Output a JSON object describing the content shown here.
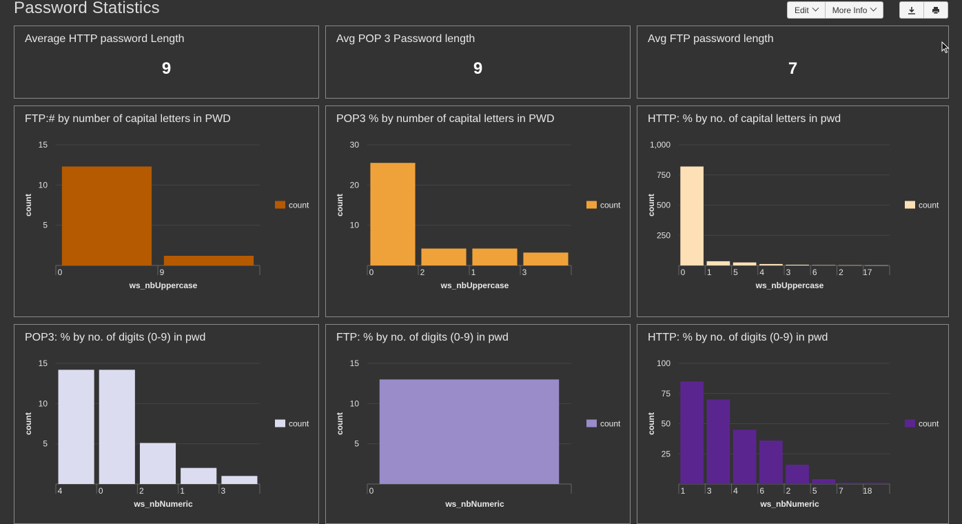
{
  "page": {
    "title": "Password Statistics"
  },
  "toolbar": {
    "edit_label": "Edit",
    "more_info_label": "More Info",
    "download_icon": "download-icon",
    "print_icon": "print-icon"
  },
  "single_values": [
    {
      "title": "Average HTTP password Length",
      "value": "9"
    },
    {
      "title": "Avg POP 3 Password length",
      "value": "9"
    },
    {
      "title": "Avg FTP password length",
      "value": "7"
    }
  ],
  "chart_data": [
    {
      "type": "bar",
      "title": "FTP:# by number of capital letters in PWD",
      "xlabel": "ws_nbUppercase",
      "ylabel": "count",
      "categories": [
        "0",
        "9"
      ],
      "series": [
        {
          "name": "count",
          "values": [
            12.3,
            1.2
          ]
        }
      ],
      "ylim": [
        0,
        15
      ],
      "yticks": [
        "5",
        "10",
        "15"
      ],
      "ytick_values": [
        5,
        10,
        15
      ],
      "color": "#b55a00",
      "legend": "right"
    },
    {
      "type": "bar",
      "title": "POP3 % by number of capital letters in PWD",
      "xlabel": "ws_nbUppercase",
      "ylabel": "count",
      "categories": [
        "0",
        "2",
        "1",
        "3"
      ],
      "series": [
        {
          "name": "count",
          "values": [
            25.5,
            4.2,
            4.2,
            3.2
          ]
        }
      ],
      "ylim": [
        0,
        30
      ],
      "yticks": [
        "10",
        "20",
        "30"
      ],
      "ytick_values": [
        10,
        20,
        30
      ],
      "color": "#f0a23a",
      "legend": "right"
    },
    {
      "type": "bar",
      "title": "HTTP: % by no. of capital letters in pwd",
      "xlabel": "ws_nbUppercase",
      "ylabel": "count",
      "categories": [
        "0",
        "1",
        "5",
        "4",
        "3",
        "6",
        "2",
        "17"
      ],
      "series": [
        {
          "name": "count",
          "values": [
            820,
            35,
            25,
            12,
            6,
            3,
            2,
            1
          ]
        }
      ],
      "ylim": [
        0,
        1000
      ],
      "yticks": [
        "250",
        "500",
        "750",
        "1,000"
      ],
      "ytick_values": [
        250,
        500,
        750,
        1000
      ],
      "color": "#fde0b6",
      "legend": "right"
    },
    {
      "type": "bar",
      "title": "POP3: % by no. of digits (0-9) in pwd",
      "xlabel": "ws_nbNumeric",
      "ylabel": "count",
      "categories": [
        "4",
        "0",
        "2",
        "1",
        "3"
      ],
      "series": [
        {
          "name": "count",
          "values": [
            14.2,
            14.2,
            5.1,
            2,
            1
          ]
        }
      ],
      "ylim": [
        0,
        15
      ],
      "yticks": [
        "5",
        "10",
        "15"
      ],
      "ytick_values": [
        5,
        10,
        15
      ],
      "color": "#dcdcf0",
      "legend": "right"
    },
    {
      "type": "bar",
      "title": "FTP: % by no. of digits (0-9) in pwd",
      "xlabel": "ws_nbNumeric",
      "ylabel": "count",
      "categories": [
        "0"
      ],
      "series": [
        {
          "name": "count",
          "values": [
            13
          ]
        }
      ],
      "ylim": [
        0,
        15
      ],
      "yticks": [
        "5",
        "10",
        "15"
      ],
      "ytick_values": [
        5,
        10,
        15
      ],
      "color": "#9a8cc8",
      "legend": "right"
    },
    {
      "type": "bar",
      "title": "HTTP: % by no. of digits (0-9) in pwd",
      "xlabel": "ws_nbNumeric",
      "ylabel": "count",
      "categories": [
        "1",
        "3",
        "4",
        "6",
        "2",
        "5",
        "7",
        "18"
      ],
      "series": [
        {
          "name": "count",
          "values": [
            85,
            70,
            45,
            36,
            16,
            4,
            1,
            1
          ]
        }
      ],
      "ylim": [
        0,
        100
      ],
      "yticks": [
        "25",
        "50",
        "75",
        "100"
      ],
      "ytick_values": [
        25,
        50,
        75,
        100
      ],
      "color": "#5b2590",
      "legend": "right"
    }
  ]
}
